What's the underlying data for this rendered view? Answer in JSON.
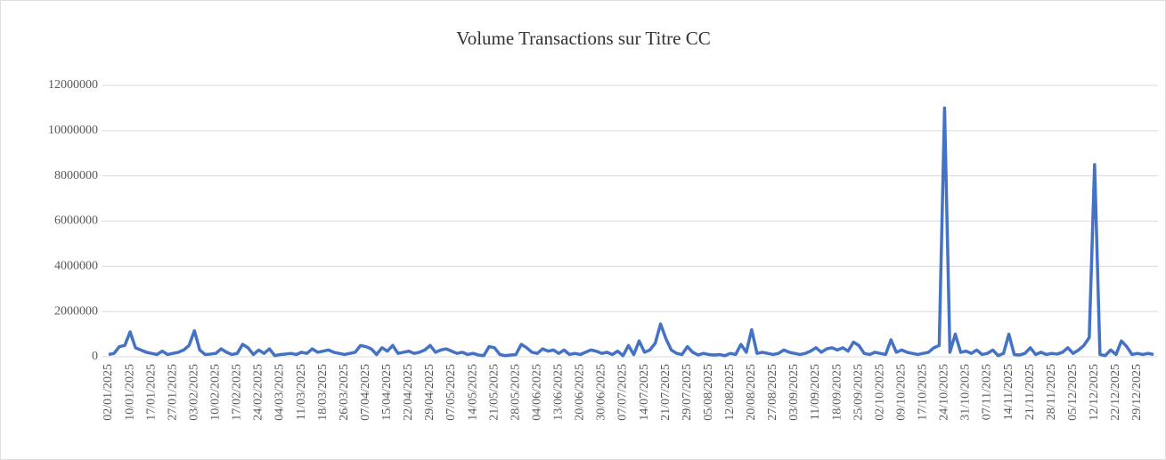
{
  "chart_data": {
    "type": "line",
    "title": "Volume Transactions sur Titre CC",
    "categories": [
      "02/01/2025",
      null,
      null,
      null,
      "10/01/2025",
      null,
      null,
      null,
      "17/01/2025",
      null,
      null,
      null,
      "27/01/2025",
      null,
      null,
      null,
      "03/02/2025",
      null,
      null,
      null,
      "10/02/2025",
      null,
      null,
      null,
      "17/02/2025",
      null,
      null,
      null,
      "24/02/2025",
      null,
      null,
      null,
      "04/03/2025",
      null,
      null,
      null,
      "11/03/2025",
      null,
      null,
      null,
      "18/03/2025",
      null,
      null,
      null,
      "26/03/2025",
      null,
      null,
      null,
      "07/04/2025",
      null,
      null,
      null,
      "15/04/2025",
      null,
      null,
      null,
      "22/04/2025",
      null,
      null,
      null,
      "29/04/2025",
      null,
      null,
      null,
      "07/05/2025",
      null,
      null,
      null,
      "14/05/2025",
      null,
      null,
      null,
      "21/05/2025",
      null,
      null,
      null,
      "28/05/2025",
      null,
      null,
      null,
      "04/06/2025",
      null,
      null,
      null,
      "13/06/2025",
      null,
      null,
      null,
      "20/06/2025",
      null,
      null,
      null,
      "30/06/2025",
      null,
      null,
      null,
      "07/07/2025",
      null,
      null,
      null,
      "14/07/2025",
      null,
      null,
      null,
      "21/07/2025",
      null,
      null,
      null,
      "29/07/2025",
      null,
      null,
      null,
      "05/08/2025",
      null,
      null,
      null,
      "12/08/2025",
      null,
      null,
      null,
      "20/08/2025",
      null,
      null,
      null,
      "27/08/2025",
      null,
      null,
      null,
      "03/09/2025",
      null,
      null,
      null,
      "11/09/2025",
      null,
      null,
      null,
      "18/09/2025",
      null,
      null,
      null,
      "25/09/2025",
      null,
      null,
      null,
      "02/10/2025",
      null,
      null,
      null,
      "09/10/2025",
      null,
      null,
      null,
      "17/10/2025",
      null,
      null,
      null,
      "24/10/2025",
      null,
      null,
      null,
      "31/10/2025",
      null,
      null,
      null,
      "07/11/2025",
      null,
      null,
      null,
      "14/11/2025",
      null,
      null,
      null,
      "21/11/2025",
      null,
      null,
      null,
      "28/11/2025",
      null,
      null,
      null,
      "05/12/2025",
      null,
      null,
      null,
      "12/12/2025",
      null,
      null,
      null,
      "22/12/2025",
      null,
      null,
      null,
      "29/12/2025",
      null,
      null,
      null
    ],
    "series": [
      {
        "name": "Volume",
        "color": "#4472c4",
        "values": [
          100000,
          150000,
          450000,
          500000,
          1100000,
          400000,
          300000,
          200000,
          150000,
          100000,
          250000,
          100000,
          150000,
          200000,
          300000,
          500000,
          1150000,
          300000,
          100000,
          120000,
          150000,
          350000,
          200000,
          100000,
          150000,
          550000,
          400000,
          100000,
          300000,
          150000,
          350000,
          50000,
          100000,
          120000,
          150000,
          100000,
          200000,
          150000,
          350000,
          200000,
          250000,
          300000,
          200000,
          150000,
          100000,
          150000,
          200000,
          500000,
          450000,
          350000,
          100000,
          400000,
          250000,
          500000,
          150000,
          200000,
          250000,
          150000,
          200000,
          300000,
          500000,
          200000,
          300000,
          350000,
          250000,
          150000,
          200000,
          100000,
          150000,
          80000,
          50000,
          450000,
          400000,
          100000,
          50000,
          80000,
          100000,
          550000,
          400000,
          200000,
          150000,
          350000,
          250000,
          300000,
          150000,
          300000,
          100000,
          150000,
          100000,
          200000,
          300000,
          250000,
          150000,
          200000,
          100000,
          250000,
          50000,
          500000,
          100000,
          700000,
          200000,
          300000,
          600000,
          1450000,
          800000,
          300000,
          150000,
          100000,
          450000,
          200000,
          80000,
          150000,
          100000,
          80000,
          100000,
          50000,
          150000,
          100000,
          550000,
          200000,
          1200000,
          150000,
          200000,
          150000,
          100000,
          150000,
          300000,
          200000,
          150000,
          100000,
          150000,
          250000,
          400000,
          200000,
          350000,
          400000,
          300000,
          400000,
          250000,
          650000,
          500000,
          150000,
          100000,
          200000,
          150000,
          100000,
          750000,
          200000,
          300000,
          200000,
          150000,
          100000,
          150000,
          200000,
          400000,
          500000,
          11000000,
          200000,
          1000000,
          200000,
          250000,
          150000,
          300000,
          100000,
          150000,
          300000,
          50000,
          150000,
          1000000,
          100000,
          80000,
          150000,
          400000,
          100000,
          200000,
          100000,
          150000,
          120000,
          200000,
          400000,
          150000,
          300000,
          500000,
          850000,
          8500000,
          100000,
          50000,
          300000,
          100000,
          700000,
          450000,
          100000,
          150000,
          100000,
          150000,
          100000
        ]
      }
    ],
    "ylim": [
      0,
      12000000
    ],
    "yticks": [
      0,
      2000000,
      4000000,
      6000000,
      8000000,
      10000000,
      12000000
    ],
    "grid": true
  }
}
